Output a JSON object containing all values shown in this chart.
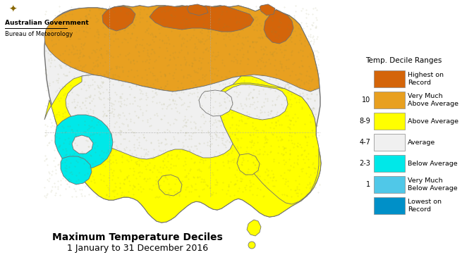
{
  "title_line1": "Maximum Temperature Deciles",
  "title_line2": "1 January to 31 December 2016",
  "gov_line1": "Australian Government",
  "gov_line2": "Bureau of Meteorology",
  "legend_title": "Temp. Decile Ranges",
  "col_highest": "#D4650A",
  "col_very_above": "#E8A020",
  "col_above": "#FFFF00",
  "col_average": "#F0F0F0",
  "col_below": "#00E8E8",
  "col_very_below": "#50C8E8",
  "col_lowest": "#0090C8",
  "col_border": "#707070",
  "col_dotbg": "#E0A060",
  "bg_color": "#FFFFFF"
}
